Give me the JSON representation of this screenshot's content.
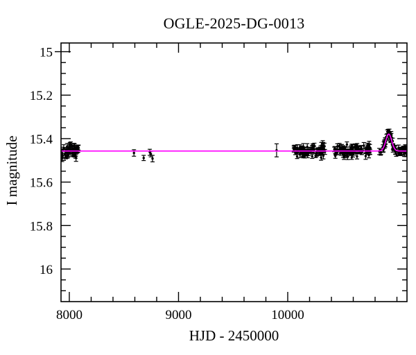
{
  "chart_data": {
    "type": "scatter",
    "title": "OGLE-2025-DG-0013",
    "xlabel": "HJD - 2450000",
    "ylabel": "I magnitude",
    "xlim": [
      7924,
      11092
    ],
    "ylim": [
      14.96,
      16.15
    ],
    "y_axis_inverted": true,
    "grid": false,
    "legend": null,
    "x_major_ticks": [
      8000,
      9000,
      10000
    ],
    "x_minor_step": 200,
    "y_major_ticks": [
      15,
      15.2,
      15.4,
      15.6,
      15.8,
      16
    ],
    "y_minor_step": 0.05,
    "colors": {
      "background": "#ffffff",
      "frame": "#000000",
      "data_points": "#000000",
      "model_curve": "#ff00ff"
    },
    "model_curve": {
      "description": "flat baseline with gaussian microlensing brightening bump",
      "baseline_mag": 15.457,
      "peak_mag": 15.379,
      "amplitude_mag": 0.078,
      "t_peak": 10925,
      "sigma_days": 27
    },
    "points": {
      "marker": "filled-circle-with-error-bars",
      "marker_radius_px": 1.7,
      "typical_error_mag": 0.012,
      "isolated_points": [
        {
          "t": 8592,
          "mag": 15.466,
          "err": 0.015
        },
        {
          "t": 8681,
          "mag": 15.489,
          "err": 0.012
        },
        {
          "t": 8737,
          "mag": 15.463,
          "err": 0.014
        },
        {
          "t": 8747,
          "mag": 15.471,
          "err": 0.013
        },
        {
          "t": 8762,
          "mag": 15.492,
          "err": 0.015
        },
        {
          "t": 9898,
          "mag": 15.454,
          "err": 0.03
        }
      ],
      "clusters": [
        {
          "name": "season-1",
          "t_start": 7926,
          "t_end": 8085,
          "n": 55,
          "mag_mean": 15.458,
          "mag_scatter": 0.014,
          "err": 0.013,
          "seed": 11
        },
        {
          "name": "season-2",
          "t_start": 10050,
          "t_end": 10350,
          "n": 80,
          "mag_mean": 15.456,
          "mag_scatter": 0.014,
          "err": 0.012,
          "seed": 22
        },
        {
          "name": "season-3",
          "t_start": 10425,
          "t_end": 10758,
          "n": 85,
          "mag_mean": 15.456,
          "mag_scatter": 0.014,
          "err": 0.012,
          "seed": 33
        },
        {
          "name": "season-4-event",
          "t_start": 10838,
          "t_end": 11088,
          "n": 62,
          "mag_mean": "model",
          "mag_scatter": 0.01,
          "err": 0.012,
          "seed": 44
        }
      ]
    }
  }
}
